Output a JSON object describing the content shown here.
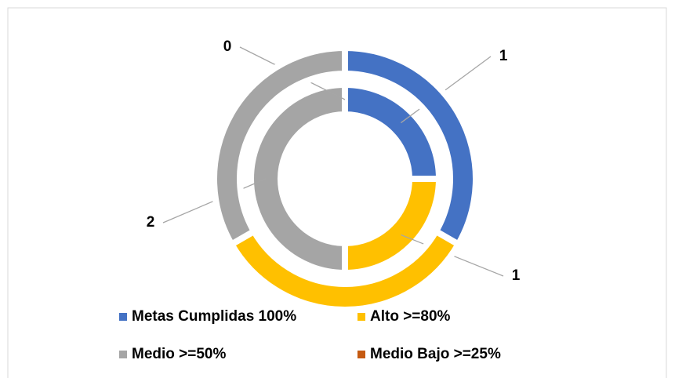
{
  "chart_data": {
    "type": "doughnut",
    "categories": [
      "Metas Cumplidas 100%",
      "Alto >=80%",
      "Medio >=50%",
      "Medio Bajo >=25%"
    ],
    "colors": [
      "#4472c4",
      "#ffc000",
      "#a5a5a5",
      "#c55a11"
    ],
    "series": [
      {
        "values": [
          1,
          1,
          2,
          0
        ],
        "show_labels": true
      },
      {
        "values": [
          1,
          1,
          1,
          0
        ],
        "show_labels": false
      }
    ],
    "legend": "bottom"
  }
}
